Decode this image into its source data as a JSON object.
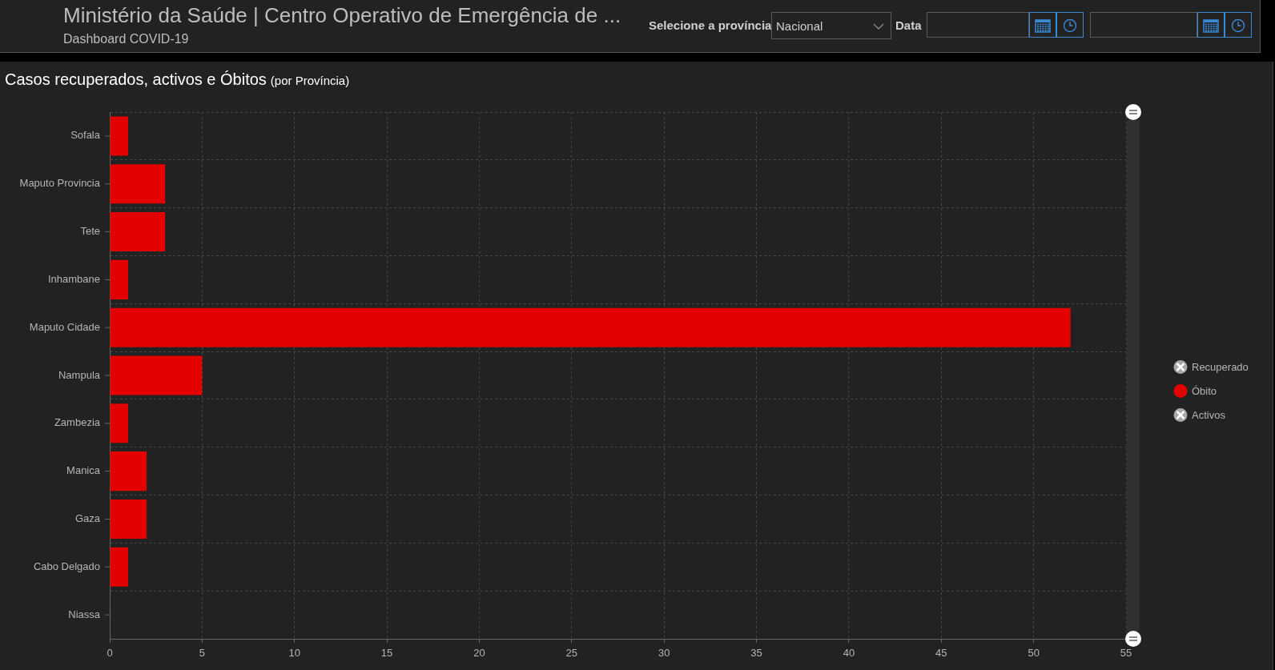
{
  "chart_data": {
    "type": "bar",
    "orientation": "horizontal",
    "stacked": true,
    "title": "Casos recuperados, activos e Óbitos",
    "subtitle": "(por Província)",
    "annotations": [
      "Ministério da Saúde | Centro Operativo de Emergência de ...",
      "Dashboard COVID-19",
      "Selecione a província",
      "Nacional",
      "Data"
    ],
    "categories": [
      "Sofala",
      "Maputo Provincia",
      "Tete",
      "Inhambane",
      "Maputo Cidade",
      "Nampula",
      "Zambezia",
      "Manica",
      "Gaza",
      "Cabo Delgado",
      "Niassa"
    ],
    "series": [
      {
        "name": "Recuperado",
        "color": "#a8a8a8",
        "values": [
          null,
          null,
          null,
          null,
          null,
          null,
          null,
          null,
          null,
          null,
          null
        ]
      },
      {
        "name": "Óbito",
        "color": "#e30000",
        "values": [
          1,
          3,
          3,
          1,
          52,
          5,
          1,
          2,
          2,
          1,
          0
        ]
      },
      {
        "name": "Activos",
        "color": "#a8a8a8",
        "values": [
          null,
          null,
          null,
          null,
          null,
          null,
          null,
          null,
          null,
          null,
          null
        ]
      }
    ],
    "xlim": [
      0,
      55
    ],
    "xticks": [
      0,
      5,
      10,
      15,
      20,
      25,
      30,
      35,
      40,
      45,
      50,
      55
    ],
    "grid": true,
    "legend": "right"
  }
}
